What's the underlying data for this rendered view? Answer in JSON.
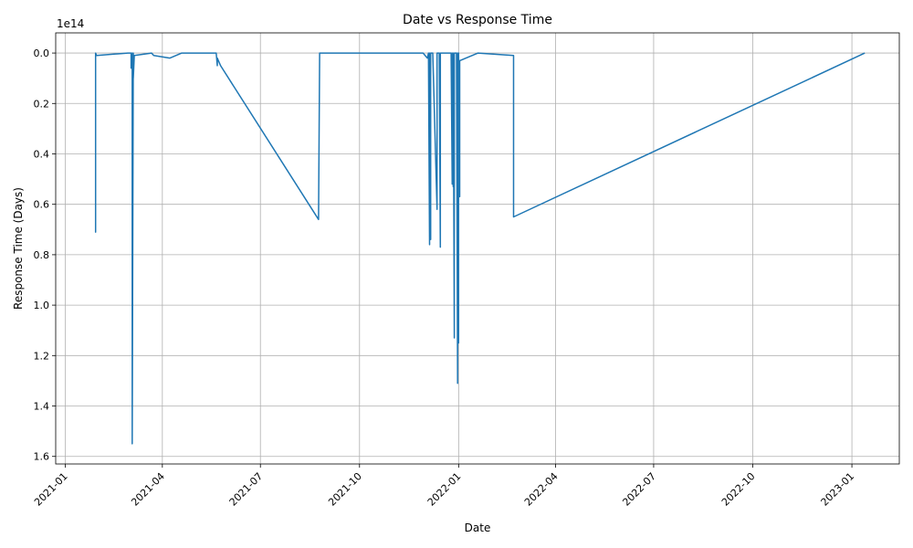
{
  "chart_data": {
    "type": "line",
    "title": "Date vs Response Time",
    "xlabel": "Date",
    "ylabel": "Response Time (Days)",
    "y_offset_label": "1e14",
    "y_inverted": true,
    "grid": true,
    "x_range": [
      "2020-12-23",
      "2023-02-14"
    ],
    "ylim": [
      1.63,
      -0.08
    ],
    "x_ticks": [
      "2021-01",
      "2021-04",
      "2021-07",
      "2021-10",
      "2022-01",
      "2022-04",
      "2022-07",
      "2022-10",
      "2023-01"
    ],
    "x_tick_dates": [
      "2021-01-01",
      "2021-04-01",
      "2021-07-01",
      "2021-10-01",
      "2022-01-01",
      "2022-04-01",
      "2022-07-01",
      "2022-10-01",
      "2023-01-01"
    ],
    "y_ticks": [
      "0.0",
      "0.2",
      "0.4",
      "0.6",
      "0.8",
      "1.0",
      "1.2",
      "1.4",
      "1.6"
    ],
    "y_tick_values": [
      0.0,
      0.2,
      0.4,
      0.6,
      0.8,
      1.0,
      1.2,
      1.4,
      1.6
    ],
    "series": [
      {
        "color": "#1f77b4",
        "points": [
          [
            "2021-01-29",
            0.01
          ],
          [
            "2021-01-29",
            0.71
          ],
          [
            "2021-01-29",
            0.0
          ],
          [
            "2021-01-30",
            0.01
          ],
          [
            "2021-02-28",
            0.0
          ],
          [
            "2021-03-03",
            0.0
          ],
          [
            "2021-03-03",
            0.06
          ],
          [
            "2021-03-04",
            0.0
          ],
          [
            "2021-03-04",
            1.55
          ],
          [
            "2021-03-05",
            0.0
          ],
          [
            "2021-03-05",
            0.1
          ],
          [
            "2021-03-06",
            0.01
          ],
          [
            "2021-03-22",
            0.0
          ],
          [
            "2021-03-24",
            0.01
          ],
          [
            "2021-04-08",
            0.02
          ],
          [
            "2021-04-19",
            0.0
          ],
          [
            "2021-05-21",
            0.0
          ],
          [
            "2021-05-22",
            0.05
          ],
          [
            "2021-05-22",
            0.02
          ],
          [
            "2021-05-25",
            0.05
          ],
          [
            "2021-08-24",
            0.66
          ],
          [
            "2021-08-25",
            0.0
          ],
          [
            "2021-11-29",
            0.0
          ],
          [
            "2021-12-03",
            0.02
          ],
          [
            "2021-12-04",
            0.0
          ],
          [
            "2021-12-05",
            0.76
          ],
          [
            "2021-12-05",
            0.0
          ],
          [
            "2021-12-06",
            0.74
          ],
          [
            "2021-12-06",
            0.0
          ],
          [
            "2021-12-08",
            0.0
          ],
          [
            "2021-12-08",
            0.0
          ],
          [
            "2021-12-12",
            0.62
          ],
          [
            "2021-12-12",
            0.0
          ],
          [
            "2021-12-14",
            0.0
          ],
          [
            "2021-12-15",
            0.77
          ],
          [
            "2021-12-15",
            0.0
          ],
          [
            "2021-12-19",
            0.0
          ],
          [
            "2021-12-25",
            0.0
          ],
          [
            "2021-12-26",
            0.52
          ],
          [
            "2021-12-26",
            0.0
          ],
          [
            "2021-12-27",
            0.53
          ],
          [
            "2021-12-27",
            0.0
          ],
          [
            "2021-12-28",
            1.13
          ],
          [
            "2021-12-28",
            0.0
          ],
          [
            "2021-12-29",
            0.0
          ],
          [
            "2021-12-30",
            0.0
          ],
          [
            "2021-12-31",
            1.31
          ],
          [
            "2021-12-31",
            0.0
          ],
          [
            "2022-01-01",
            1.15
          ],
          [
            "2022-01-01",
            0.0
          ],
          [
            "2022-01-02",
            0.57
          ],
          [
            "2022-01-02",
            0.03
          ],
          [
            "2022-01-19",
            0.0
          ],
          [
            "2022-02-21",
            0.01
          ],
          [
            "2022-02-21",
            0.65
          ],
          [
            "2023-01-13",
            0.0
          ]
        ]
      }
    ]
  }
}
